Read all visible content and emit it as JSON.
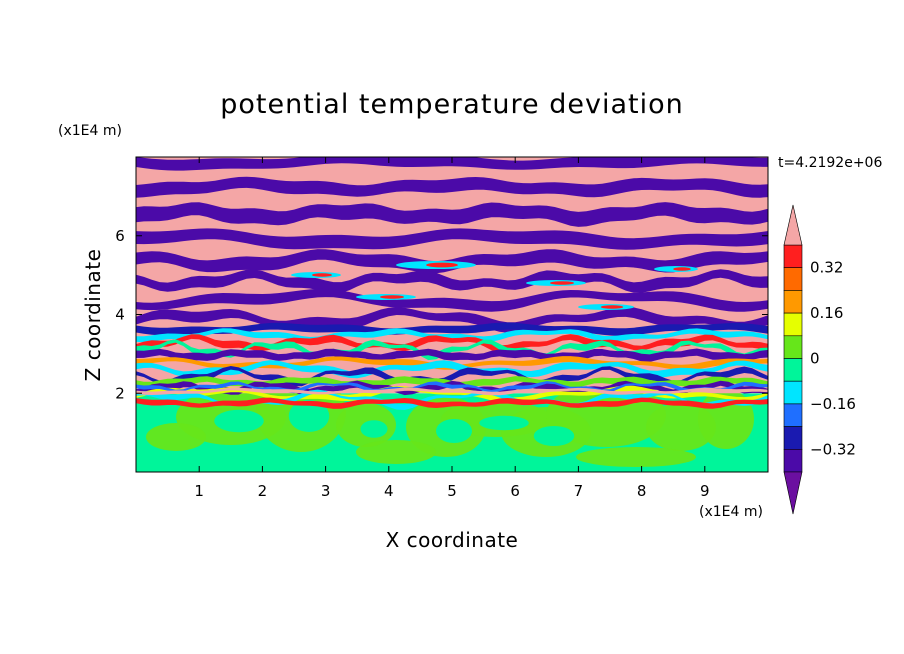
{
  "chart_data": {
    "type": "heatmap",
    "title": "potential temperature deviation",
    "xlabel": "X coordinate",
    "ylabel": "Z coordinate",
    "x_unit": "(x1E4 m)",
    "y_unit": "(x1E4 m)",
    "time_label": "t=4.2192e+06",
    "xlim": [
      0,
      10
    ],
    "ylim": [
      0,
      8
    ],
    "x_ticks": [
      1,
      2,
      3,
      4,
      5,
      6,
      7,
      8,
      9
    ],
    "y_ticks": [
      2,
      4,
      6
    ],
    "colorbar": {
      "levels": [
        -0.48,
        -0.4,
        -0.32,
        -0.24,
        -0.16,
        -0.08,
        0,
        0.08,
        0.16,
        0.24,
        0.32,
        0.4,
        0.48
      ],
      "tick_labels": [
        "0.32",
        "0.16",
        "0",
        "−0.16",
        "−0.32"
      ],
      "tick_values": [
        0.32,
        0.16,
        0,
        -0.16,
        -0.32
      ],
      "colors": [
        "#6b0fa0",
        "#4b0aa8",
        "#1a1ab0",
        "#1f6fff",
        "#00e5ff",
        "#00f59a",
        "#66e61a",
        "#e6ff00",
        "#ff9900",
        "#ff6a00",
        "#ff1f1f",
        "#f4a6a6"
      ],
      "extend": "both"
    },
    "field_description_regions": [
      {
        "z_range": [
          0,
          2
        ],
        "value": 0.0
      },
      {
        "z_range": [
          2,
          4
        ],
        "value": "mixed"
      },
      {
        "z_range": [
          4,
          8
        ],
        "value": "alternating"
      }
    ]
  }
}
